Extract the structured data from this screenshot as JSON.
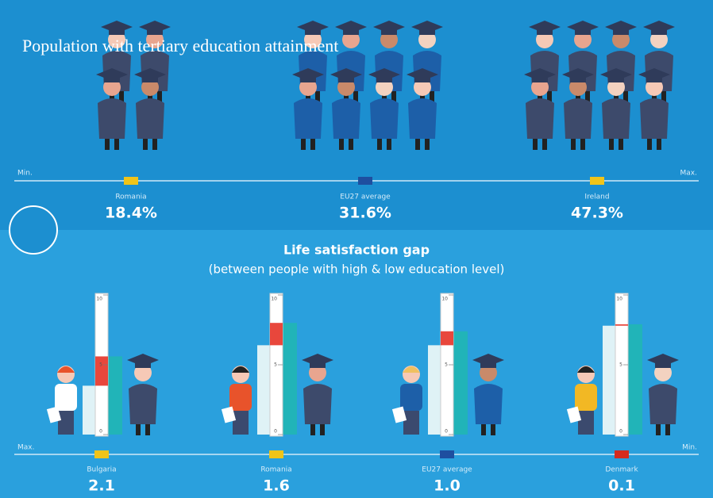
{
  "top": {
    "title": "Population with tertiary education attainment",
    "min_label": "Min.",
    "max_label": "Max.",
    "items": [
      {
        "country": "Romania",
        "value": "18.4%"
      },
      {
        "country": "EU27 average",
        "value": "31.6%"
      },
      {
        "country": "Ireland",
        "value": "47.3%"
      }
    ]
  },
  "bottom": {
    "title": "Life satisfaction gap",
    "subtitle": "(between people with high & low education level)",
    "max_label": "Max.",
    "min_label": "Min.",
    "scale_ticks": [
      0,
      5,
      10
    ],
    "items": [
      {
        "country": "Bulgaria",
        "gap": "2.1",
        "low": 3.5,
        "high": 5.6
      },
      {
        "country": "Romania",
        "gap": "1.6",
        "low": 6.4,
        "high": 8.0
      },
      {
        "country": "EU27 average",
        "gap": "1.0",
        "low": 6.4,
        "high": 7.4
      },
      {
        "country": "Denmark",
        "gap": "0.1",
        "low": 7.8,
        "high": 7.9
      }
    ]
  }
}
